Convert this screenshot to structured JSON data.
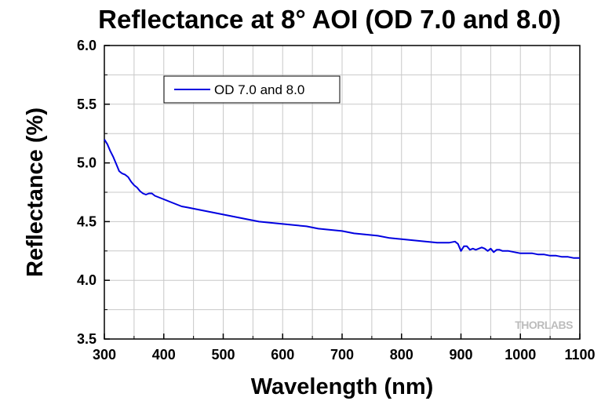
{
  "chart_data": {
    "type": "line",
    "title": "Reflectance at 8° AOI (OD 7.0 and 8.0)",
    "xlabel": "Wavelength (nm)",
    "ylabel": "Reflectance (%)",
    "xlim": [
      300,
      1100
    ],
    "ylim": [
      3.5,
      6.0
    ],
    "xticks": [
      300,
      400,
      500,
      600,
      700,
      800,
      900,
      1000,
      1100
    ],
    "yticks": [
      3.5,
      4.0,
      4.5,
      5.0,
      5.5,
      6.0
    ],
    "ytick_labels": [
      "3.5",
      "4.0",
      "4.5",
      "5.0",
      "5.5",
      "6.0"
    ],
    "grid": true,
    "legend_position": "top-left",
    "watermark": "THORLABS",
    "series": [
      {
        "name": "OD 7.0 and 8.0",
        "color": "#0000e0",
        "x": [
          300,
          305,
          310,
          315,
          320,
          325,
          330,
          335,
          340,
          345,
          350,
          355,
          360,
          365,
          370,
          375,
          380,
          385,
          390,
          395,
          400,
          410,
          420,
          430,
          440,
          450,
          460,
          470,
          480,
          490,
          500,
          520,
          540,
          560,
          580,
          600,
          620,
          640,
          660,
          680,
          700,
          720,
          740,
          760,
          780,
          800,
          820,
          840,
          860,
          880,
          890,
          895,
          900,
          905,
          910,
          915,
          920,
          925,
          930,
          935,
          940,
          945,
          950,
          955,
          960,
          965,
          970,
          980,
          990,
          1000,
          1010,
          1020,
          1030,
          1040,
          1050,
          1060,
          1070,
          1080,
          1090,
          1100
        ],
        "y": [
          5.2,
          5.16,
          5.1,
          5.05,
          4.99,
          4.93,
          4.91,
          4.9,
          4.88,
          4.84,
          4.81,
          4.79,
          4.76,
          4.74,
          4.73,
          4.74,
          4.74,
          4.72,
          4.71,
          4.7,
          4.69,
          4.67,
          4.65,
          4.63,
          4.62,
          4.61,
          4.6,
          4.59,
          4.58,
          4.57,
          4.56,
          4.54,
          4.52,
          4.5,
          4.49,
          4.48,
          4.47,
          4.46,
          4.44,
          4.43,
          4.42,
          4.4,
          4.39,
          4.38,
          4.36,
          4.35,
          4.34,
          4.33,
          4.32,
          4.32,
          4.33,
          4.31,
          4.25,
          4.29,
          4.29,
          4.26,
          4.27,
          4.26,
          4.27,
          4.28,
          4.27,
          4.25,
          4.27,
          4.24,
          4.26,
          4.26,
          4.25,
          4.25,
          4.24,
          4.23,
          4.23,
          4.23,
          4.22,
          4.22,
          4.21,
          4.21,
          4.2,
          4.2,
          4.19,
          4.19
        ]
      }
    ]
  }
}
